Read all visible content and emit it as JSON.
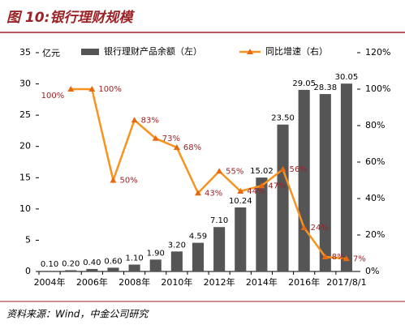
{
  "chart_data": {
    "type": "bar",
    "title": "图 10:银行理财规模",
    "source": "资料来源：Wind，中金公司研究",
    "ylabel": "亿元",
    "categories": [
      "2004年",
      null,
      "2006年",
      null,
      "2008年",
      null,
      "2010年",
      null,
      "2012年",
      null,
      "2014年",
      null,
      "2016年",
      null,
      "2017/8/1"
    ],
    "series": [
      {
        "name": "银行理财产品余额（左）",
        "color": "#555555",
        "values": [
          0.1,
          0.2,
          0.4,
          0.6,
          1.1,
          1.9,
          3.2,
          4.59,
          7.1,
          10.24,
          15.02,
          23.5,
          29.05,
          28.38,
          30.05
        ],
        "value_labels": [
          "0.10",
          "0.20",
          "0.40",
          "0.60",
          "1.10",
          "1.90",
          "3.20",
          "4.59",
          "7.10",
          "10.24",
          "15.02",
          "23.50",
          "29.05",
          "28.38",
          "30.05"
        ]
      },
      {
        "name": "同比增速（右）",
        "color": "#f7931e",
        "axis": "y2",
        "values": [
          null,
          100,
          100,
          50,
          83,
          73,
          68,
          43,
          55,
          44,
          47,
          56,
          24,
          8,
          7
        ],
        "value_labels": [
          null,
          "100%",
          "100%",
          "50%",
          "83%",
          "73%",
          "68%",
          "43%",
          "55%",
          "44%",
          "47%",
          "56%",
          "24%",
          "8%",
          "7%"
        ]
      }
    ],
    "ylim": [
      0,
      35
    ],
    "yticks": [
      0,
      5,
      10,
      15,
      20,
      25,
      30,
      35
    ],
    "y2lim": [
      0,
      120
    ],
    "y2ticks": [
      {
        "value": 0,
        "label": "0%"
      },
      {
        "value": 20,
        "label": "20%"
      },
      {
        "value": 40,
        "label": "40%"
      },
      {
        "value": 60,
        "label": "60%"
      },
      {
        "value": 80,
        "label": "80%"
      },
      {
        "value": 100,
        "label": "100%"
      },
      {
        "value": 120,
        "label": "120%"
      }
    ],
    "legend": "top"
  }
}
